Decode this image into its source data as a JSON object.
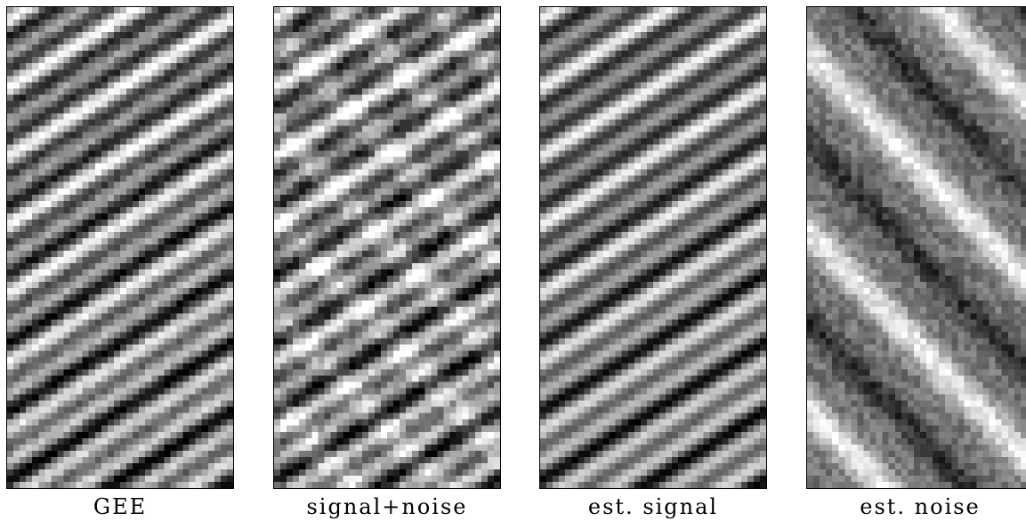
{
  "panels": [
    {
      "caption": "GEE",
      "pattern": "signal-stripes"
    },
    {
      "caption": "signal+noise",
      "pattern": "signal-plus-crossing-noise"
    },
    {
      "caption": "est. signal",
      "pattern": "smooth-signal-stripes"
    },
    {
      "caption": "est. noise",
      "pattern": "crossing-dip-noise"
    }
  ],
  "colors": {
    "background": "#ffffff",
    "frame": "#000000"
  }
}
